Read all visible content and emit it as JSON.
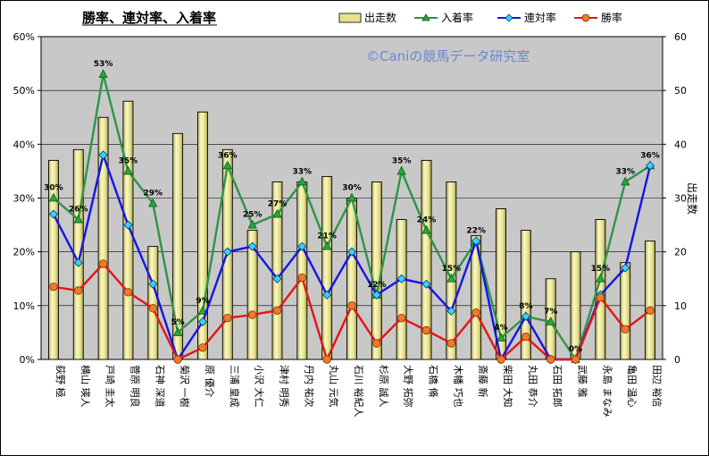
{
  "chart_data": {
    "type": "bar",
    "title": "勝率、連対率、入着率",
    "watermark": "©Caniの競馬データ研究室",
    "ylabel_right": "出走数",
    "ylim_left": [
      0,
      60
    ],
    "ylim_right": [
      0,
      60
    ],
    "yticks_left": [
      "0%",
      "10%",
      "20%",
      "30%",
      "40%",
      "50%",
      "60%"
    ],
    "yticks_right": [
      "0",
      "10",
      "20",
      "30",
      "40",
      "50",
      "60"
    ],
    "legend_position": "top",
    "grid": true,
    "categories": [
      "荻野 極",
      "横山 瑛人",
      "戸崎 圭太",
      "菅原 明良",
      "石神 深道",
      "菊沢 一樹",
      "原 優介",
      "三浦 皇成",
      "小沢 大仁",
      "津村 明秀",
      "丹内 祐次",
      "丸山 元気",
      "石川 裕紀人",
      "杉原 誠人",
      "大野 拓弥",
      "石橋 脩",
      "木幡 巧也",
      "斎藤 新",
      "柴田 大知",
      "丸田 恭介",
      "石田 拓郎",
      "武藤 雅",
      "永島 まなみ",
      "亀田 温心",
      "田辺 裕信"
    ],
    "series": [
      {
        "name": "出走数",
        "type": "bar",
        "axis": "right",
        "color": "#e6e28f",
        "values": [
          37,
          39,
          45,
          48,
          21,
          42,
          46,
          39,
          24,
          33,
          33,
          34,
          30,
          33,
          26,
          37,
          33,
          23,
          28,
          24,
          15,
          20,
          26,
          18,
          22
        ]
      },
      {
        "name": "入着率",
        "type": "line",
        "axis": "left",
        "color": "#2e9446",
        "marker": "triangle",
        "values": [
          30,
          26,
          53,
          35,
          29,
          5,
          9,
          36,
          25,
          27,
          33,
          21,
          30,
          12,
          35,
          24,
          15,
          22,
          4,
          8,
          7,
          0,
          15,
          33,
          36
        ]
      },
      {
        "name": "連対率",
        "type": "line",
        "axis": "left",
        "color": "#1414e6",
        "marker": "diamond",
        "values": [
          27,
          18,
          38,
          25,
          14,
          0,
          7,
          20,
          21,
          15,
          21,
          12,
          20,
          12,
          15,
          14,
          9,
          22,
          0,
          8,
          0,
          0,
          12,
          17,
          36
        ]
      },
      {
        "name": "勝率",
        "type": "line",
        "axis": "left",
        "color": "#e61414",
        "marker": "circle",
        "values": [
          13.5,
          12.8,
          17.8,
          12.5,
          9.5,
          0,
          2.2,
          7.7,
          8.3,
          9.1,
          15.2,
          0,
          10,
          3,
          7.7,
          5.4,
          3,
          8.7,
          0,
          4.2,
          0,
          0,
          11.5,
          5.6,
          9.1
        ]
      }
    ],
    "data_labels": [
      "30%",
      "26%",
      "53%",
      "35%",
      "29%",
      "5%",
      "9%",
      "36%",
      "25%",
      "27%",
      "33%",
      "21%",
      "30%",
      "12%",
      "35%",
      "24%",
      "15%",
      "22%",
      "4%",
      "8%",
      "7%",
      "0%",
      "15%",
      "33%",
      "36%"
    ]
  }
}
